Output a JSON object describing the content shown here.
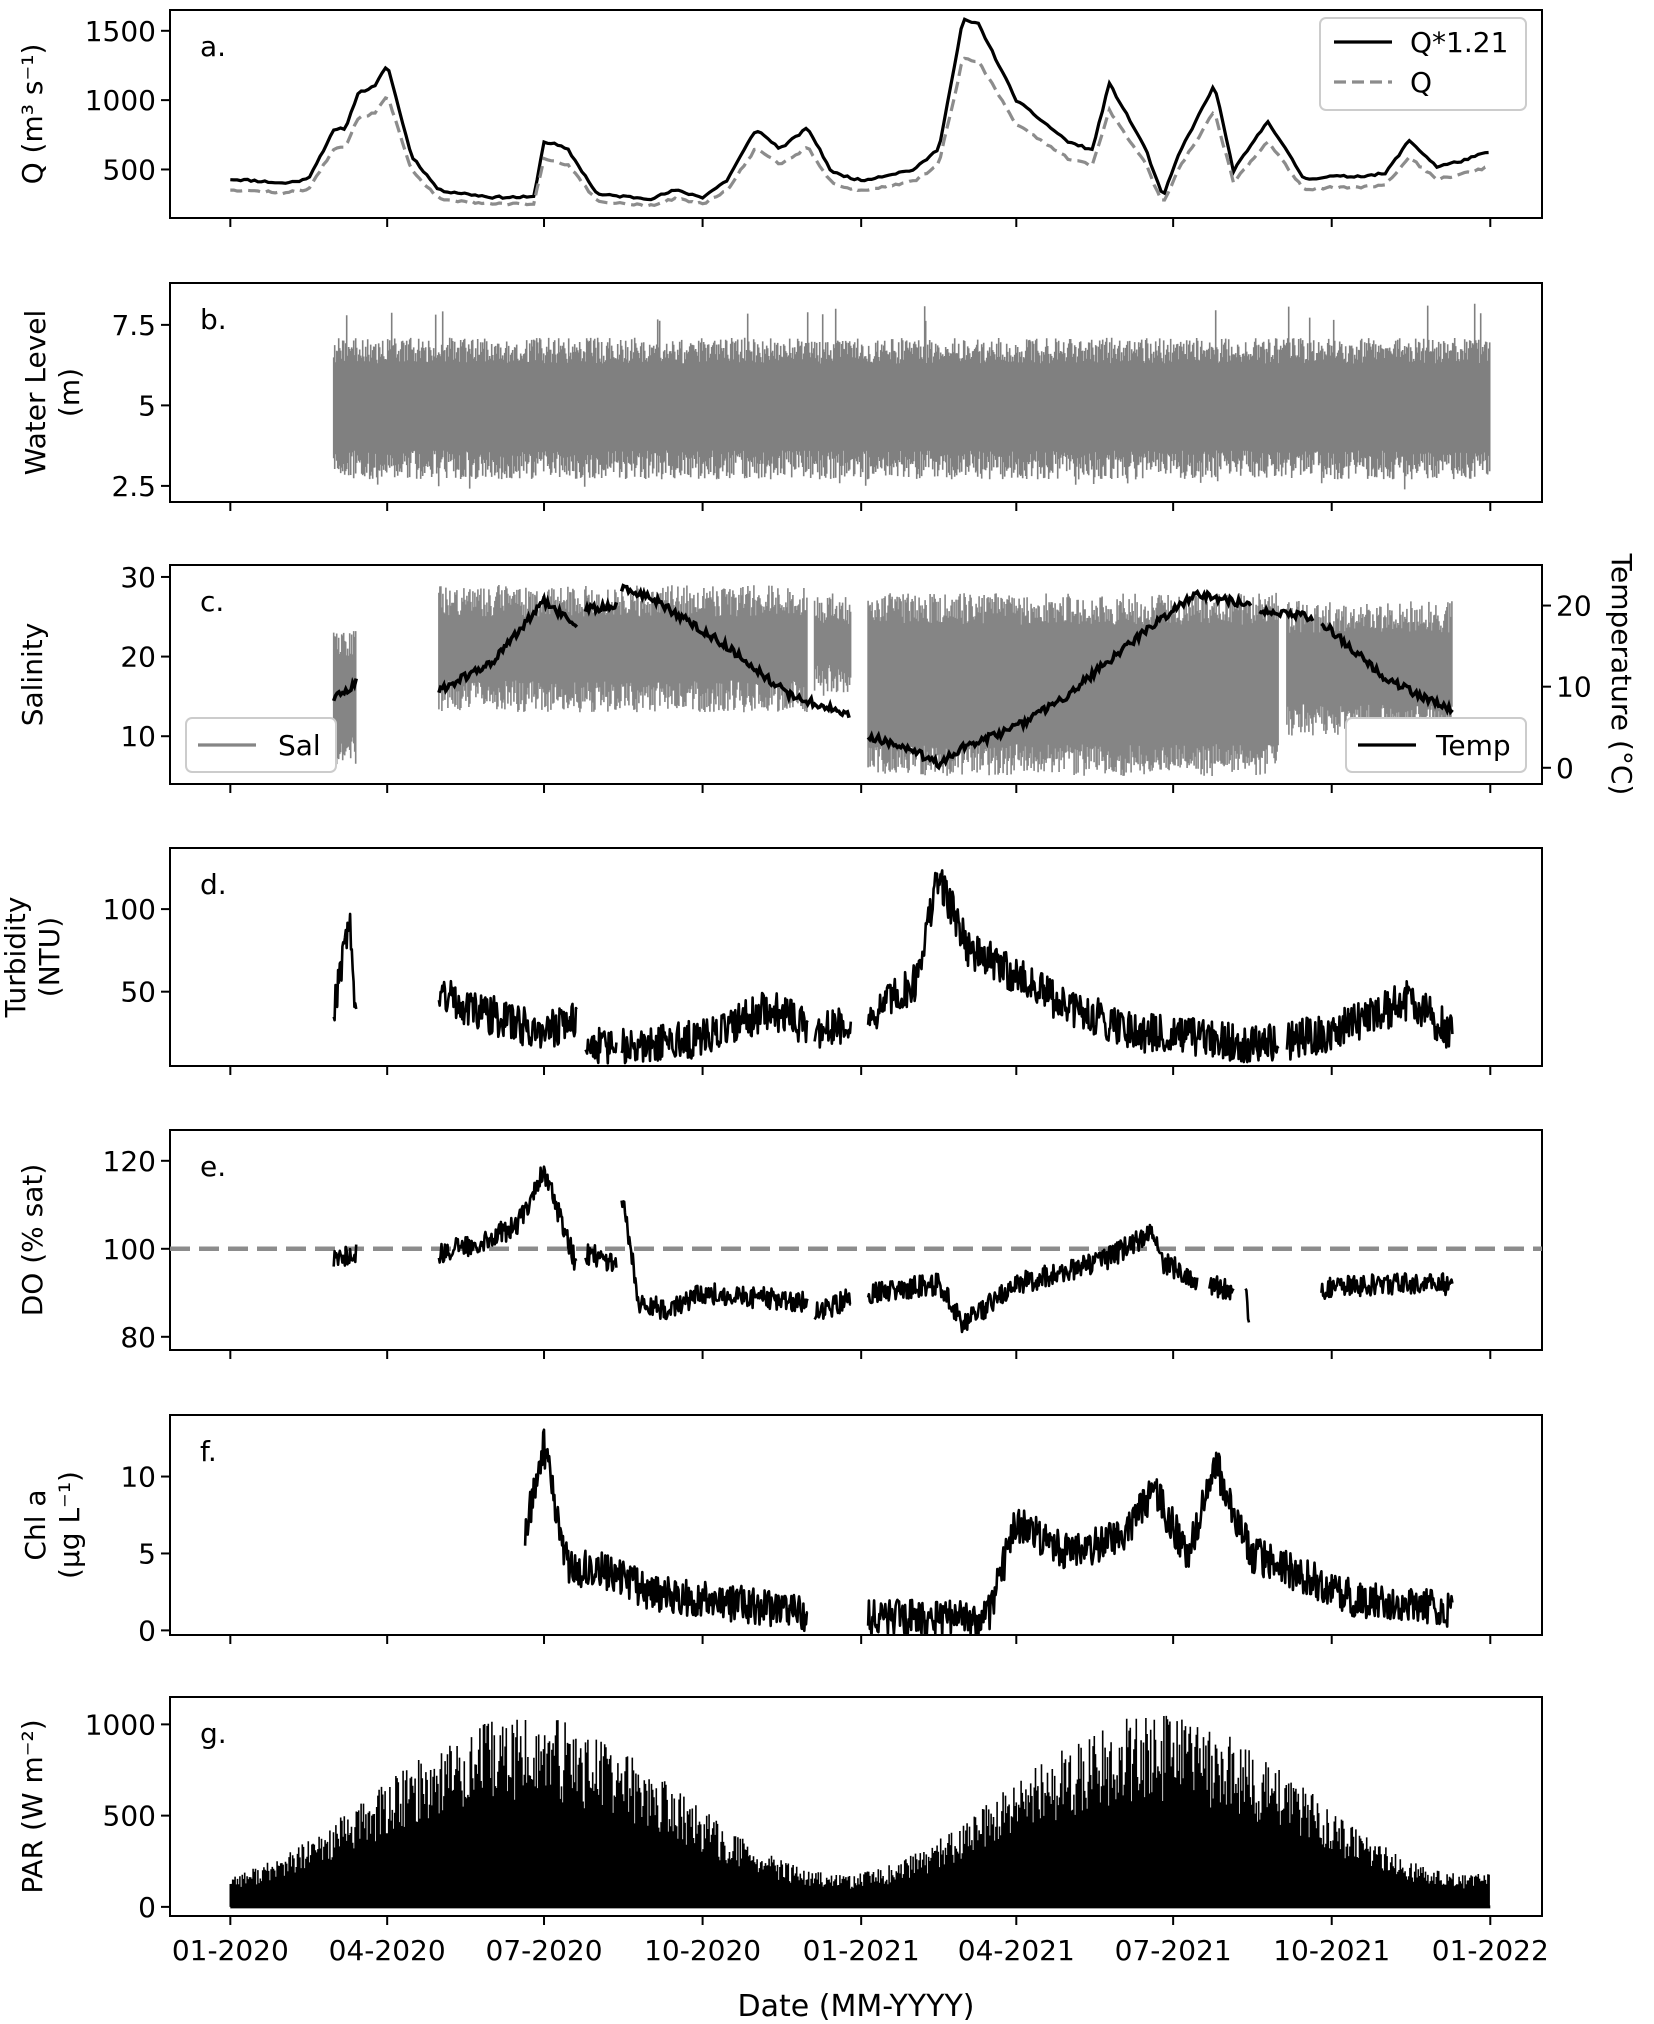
{
  "figure": {
    "xlabel": "Date (MM-YYYY)",
    "x_ticks": [
      "01-2020",
      "04-2020",
      "07-2020",
      "10-2020",
      "01-2021",
      "04-2021",
      "07-2021",
      "10-2021",
      "01-2022"
    ],
    "x_range": [
      "2019-11-27",
      "2022-01-31"
    ]
  },
  "chart_data": [
    {
      "id": "a",
      "type": "line",
      "panel_label": "a.",
      "ylabel": "Q (m³ s⁻¹)",
      "ylim": [
        150,
        1650
      ],
      "yticks": [
        500,
        1000,
        1500
      ],
      "legend": {
        "placement": "top-right",
        "entries": [
          "Q*1.21",
          "Q"
        ]
      },
      "x": [
        "2020-01-01",
        "2020-01-15",
        "2020-02-01",
        "2020-02-15",
        "2020-03-01",
        "2020-03-08",
        "2020-03-15",
        "2020-03-25",
        "2020-04-01",
        "2020-04-15",
        "2020-05-01",
        "2020-06-01",
        "2020-06-25",
        "2020-07-01",
        "2020-07-08",
        "2020-07-15",
        "2020-08-01",
        "2020-09-01",
        "2020-09-15",
        "2020-10-01",
        "2020-10-15",
        "2020-11-01",
        "2020-11-15",
        "2020-12-01",
        "2020-12-15",
        "2021-01-01",
        "2021-01-20",
        "2021-02-01",
        "2021-02-15",
        "2021-02-25",
        "2021-03-01",
        "2021-03-10",
        "2021-04-01",
        "2021-05-01",
        "2021-05-15",
        "2021-05-25",
        "2021-06-15",
        "2021-06-25",
        "2021-07-05",
        "2021-07-25",
        "2021-08-05",
        "2021-08-25",
        "2021-09-15",
        "2021-10-01",
        "2021-10-15",
        "2021-11-01",
        "2021-11-15",
        "2021-12-01",
        "2021-12-15",
        "2022-01-01"
      ],
      "series": [
        {
          "name": "Q*1.21",
          "values": [
            430,
            420,
            400,
            430,
            780,
            800,
            1050,
            1100,
            1260,
            600,
            350,
            300,
            300,
            700,
            680,
            640,
            320,
            290,
            350,
            300,
            420,
            790,
            650,
            800,
            480,
            420,
            470,
            500,
            650,
            1300,
            1580,
            1550,
            1000,
            700,
            640,
            1120,
            650,
            300,
            630,
            1110,
            490,
            850,
            430,
            450,
            450,
            470,
            710,
            520,
            560,
            630
          ]
        },
        {
          "name": "Q",
          "values": [
            355,
            345,
            330,
            355,
            645,
            660,
            870,
            910,
            1040,
            495,
            290,
            250,
            250,
            580,
            560,
            530,
            265,
            240,
            290,
            250,
            345,
            655,
            540,
            660,
            400,
            345,
            390,
            415,
            540,
            1075,
            1305,
            1280,
            825,
            580,
            530,
            925,
            540,
            250,
            520,
            920,
            405,
            705,
            355,
            370,
            370,
            390,
            585,
            430,
            465,
            520
          ]
        }
      ]
    },
    {
      "id": "b",
      "type": "line",
      "panel_label": "b.",
      "ylabel": "Water Level (m)",
      "ylim": [
        2.0,
        8.8
      ],
      "yticks": [
        2.5,
        5.0,
        7.5
      ],
      "envelope": {
        "x_start": "2020-03-01",
        "x_end": "2022-01-01",
        "low": 3.2,
        "high": 6.7,
        "spike_max": 8.2,
        "dip_min": 2.3
      }
    },
    {
      "id": "c",
      "type": "line",
      "panel_label": "c.",
      "ylabel": "Salinity",
      "ylabel_right": "Temperature (°C)",
      "ylim": [
        4,
        31.5
      ],
      "yticks": [
        10,
        20,
        30
      ],
      "ylim_right": [
        -2,
        25
      ],
      "yticks_right": [
        0,
        10,
        20
      ],
      "legend": {
        "entries": [
          "Sal",
          "Temp"
        ],
        "placement": [
          "bottom-left",
          "bottom-right"
        ]
      },
      "salinity_segments": [
        {
          "x_start": "2020-03-01",
          "x_end": "2020-03-14",
          "low": 6,
          "high": 24
        },
        {
          "x_start": "2020-05-01",
          "x_end": "2020-12-01",
          "low": 13,
          "high": 29
        },
        {
          "x_start": "2020-12-05",
          "x_end": "2020-12-26",
          "low": 15,
          "high": 28
        },
        {
          "x_start": "2021-01-05",
          "x_end": "2021-08-31",
          "low": 5,
          "high": 28
        },
        {
          "x_start": "2021-09-05",
          "x_end": "2021-12-10",
          "low": 10,
          "high": 27
        }
      ],
      "temperature_segments": [
        {
          "x": [
            "2020-03-01",
            "2020-03-14"
          ],
          "values": [
            8.5,
            10.5
          ]
        },
        {
          "x": [
            "2020-05-01",
            "2020-06-01",
            "2020-07-01",
            "2020-07-20"
          ],
          "values": [
            9.5,
            13,
            20.5,
            17.5
          ]
        },
        {
          "x": [
            "2020-07-25",
            "2020-08-12"
          ],
          "values": [
            19.5,
            20
          ]
        },
        {
          "x": [
            "2020-08-15",
            "2020-09-01",
            "2020-10-15",
            "2020-11-20",
            "2020-12-25"
          ],
          "values": [
            22,
            21,
            15,
            9,
            6.5
          ]
        },
        {
          "x": [
            "2021-01-05",
            "2021-02-01",
            "2021-02-15",
            "2021-03-01",
            "2021-04-01",
            "2021-05-01",
            "2021-06-01",
            "2021-07-01",
            "2021-07-15",
            "2021-08-15"
          ],
          "values": [
            4,
            2,
            0.5,
            2.5,
            5,
            9,
            14.5,
            19.5,
            21.5,
            20
          ]
        },
        {
          "x": [
            "2021-08-20",
            "2021-09-20"
          ],
          "values": [
            19.5,
            18.5
          ]
        },
        {
          "x": [
            "2021-09-25",
            "2021-11-01",
            "2021-12-10"
          ],
          "values": [
            18,
            11,
            7
          ]
        }
      ]
    },
    {
      "id": "d",
      "type": "line",
      "panel_label": "d.",
      "ylabel": "Turbidity (NTU)",
      "ylim": [
        5,
        137
      ],
      "yticks": [
        50,
        100
      ],
      "segments": [
        {
          "x": [
            "2020-03-01",
            "2020-03-10",
            "2020-03-14"
          ],
          "values": [
            40,
            95,
            30
          ]
        },
        {
          "x": [
            "2020-05-01",
            "2020-05-20",
            "2020-07-01",
            "2020-07-20"
          ],
          "values": [
            50,
            40,
            25,
            35
          ]
        },
        {
          "x": [
            "2020-07-25",
            "2020-08-12"
          ],
          "values": [
            20,
            15
          ]
        },
        {
          "x": [
            "2020-08-15",
            "2020-10-01",
            "2020-11-10",
            "2020-12-01"
          ],
          "values": [
            18,
            22,
            40,
            28
          ]
        },
        {
          "x": [
            "2020-12-05",
            "2020-12-26"
          ],
          "values": [
            25,
            30
          ]
        },
        {
          "x": [
            "2021-01-05",
            "2021-02-01",
            "2021-02-15",
            "2021-03-05",
            "2021-04-01",
            "2021-05-01",
            "2021-06-15",
            "2021-08-01",
            "2021-08-31"
          ],
          "values": [
            35,
            55,
            120,
            75,
            60,
            40,
            25,
            20,
            18
          ]
        },
        {
          "x": [
            "2021-09-05",
            "2021-10-01",
            "2021-11-15",
            "2021-12-10"
          ],
          "values": [
            20,
            25,
            45,
            25
          ]
        }
      ]
    },
    {
      "id": "e",
      "type": "line",
      "panel_label": "e.",
      "ylabel": "DO (% sat)",
      "ylim": [
        77,
        127
      ],
      "yticks": [
        80,
        100,
        120
      ],
      "reference_line": 100,
      "segments": [
        {
          "x": [
            "2020-03-01",
            "2020-03-14"
          ],
          "values": [
            97,
            99
          ]
        },
        {
          "x": [
            "2020-05-01",
            "2020-05-20",
            "2020-06-15",
            "2020-07-01",
            "2020-07-20"
          ],
          "values": [
            99,
            101,
            105,
            118,
            96
          ]
        },
        {
          "x": [
            "2020-07-25",
            "2020-08-12"
          ],
          "values": [
            99,
            97
          ]
        },
        {
          "x": [
            "2020-08-15",
            "2020-08-25",
            "2020-09-10",
            "2020-10-01",
            "2020-11-01",
            "2020-12-01"
          ],
          "values": [
            112,
            88,
            86,
            90,
            89,
            88
          ]
        },
        {
          "x": [
            "2020-12-05",
            "2020-12-26"
          ],
          "values": [
            85,
            89
          ]
        },
        {
          "x": [
            "2021-01-05",
            "2021-02-15",
            "2021-03-01",
            "2021-04-01",
            "2021-05-01",
            "2021-05-25",
            "2021-06-20",
            "2021-06-25",
            "2021-07-15"
          ],
          "values": [
            90,
            92,
            83,
            92,
            95,
            98,
            104,
            97,
            93
          ]
        },
        {
          "x": [
            "2021-07-22",
            "2021-08-05"
          ],
          "values": [
            92,
            90
          ]
        },
        {
          "x": [
            "2021-08-12",
            "2021-08-14"
          ],
          "values": [
            92,
            84
          ]
        },
        {
          "x": [
            "2021-09-25",
            "2021-11-01",
            "2021-12-10"
          ],
          "values": [
            91,
            92,
            92
          ]
        }
      ]
    },
    {
      "id": "f",
      "type": "line",
      "panel_label": "f.",
      "ylabel": "Chl a (µg L⁻¹)",
      "ylim": [
        -0.3,
        14
      ],
      "yticks": [
        0,
        5,
        10
      ],
      "segments": [
        {
          "x": [
            "2020-06-20",
            "2020-06-25",
            "2020-07-01",
            "2020-07-15",
            "2020-08-01",
            "2020-09-01",
            "2020-10-01",
            "2020-11-01",
            "2020-12-01"
          ],
          "values": [
            6,
            9,
            12,
            4,
            4,
            2.5,
            2,
            1.6,
            1
          ]
        },
        {
          "x": [
            "2021-01-05",
            "2021-02-01",
            "2021-03-15",
            "2021-04-01",
            "2021-05-01",
            "2021-06-01",
            "2021-06-20",
            "2021-07-10",
            "2021-07-25",
            "2021-08-15",
            "2021-09-15",
            "2021-10-15",
            "2021-11-15",
            "2021-12-10"
          ],
          "values": [
            0.8,
            0.8,
            0.7,
            7,
            5,
            6,
            9,
            5,
            11,
            5,
            3.5,
            2,
            1.7,
            1.4
          ]
        }
      ]
    },
    {
      "id": "g",
      "type": "bar",
      "panel_label": "g.",
      "ylabel": "PAR (W m⁻²)",
      "ylim": [
        -50,
        1150
      ],
      "yticks": [
        0,
        500,
        1000
      ],
      "daily_max_envelope": {
        "x_start": "2020-01-01",
        "x_end": "2022-01-01",
        "winter_min": 180,
        "summer_max": 1050
      }
    }
  ]
}
